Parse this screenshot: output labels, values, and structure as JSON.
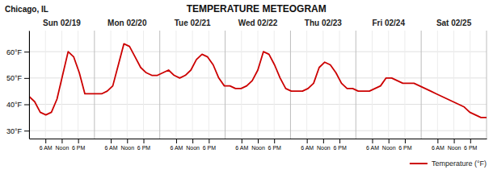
{
  "chart_data": {
    "type": "line",
    "title": "TEMPERATURE METEOGRAM",
    "subtitle": "Chicago, IL",
    "annotations": [
      "Sun 02/19",
      "Mon 02/20",
      "Tue 02/21",
      "Wed 02/22",
      "Thu 02/23",
      "Fri 02/24",
      "Sat 02/25"
    ],
    "series": [
      {
        "name": "Temperature (°F)",
        "color": "#cc0000",
        "values": [
          43,
          41,
          37,
          36,
          37,
          42,
          51,
          60,
          58,
          52,
          44,
          44,
          44,
          44,
          45,
          47,
          55,
          63,
          62,
          58,
          54,
          52,
          51,
          51,
          52,
          53,
          51,
          50,
          51,
          53,
          57,
          59,
          58,
          55,
          50,
          47,
          47,
          46,
          46,
          47,
          49,
          53,
          60,
          59,
          55,
          50,
          46,
          45,
          45,
          45,
          46,
          48,
          54,
          56,
          55,
          52,
          48,
          46,
          46,
          45,
          45,
          45,
          46,
          47,
          50,
          50,
          49,
          48,
          48,
          48,
          47,
          46,
          45,
          44,
          43,
          42,
          41,
          40,
          39,
          37,
          36,
          35,
          35
        ]
      }
    ],
    "xlim": [
      0,
      168
    ],
    "xticks": [
      {
        "value": 6,
        "label": "6 AM"
      },
      {
        "value": 12,
        "label": "Noon"
      },
      {
        "value": 18,
        "label": "6 PM"
      },
      {
        "value": 30,
        "label": "6 AM"
      },
      {
        "value": 36,
        "label": "Noon"
      },
      {
        "value": 42,
        "label": "6 PM"
      },
      {
        "value": 54,
        "label": "6 AM"
      },
      {
        "value": 60,
        "label": "Noon"
      },
      {
        "value": 66,
        "label": "6 PM"
      },
      {
        "value": 78,
        "label": "6 AM"
      },
      {
        "value": 84,
        "label": "Noon"
      },
      {
        "value": 90,
        "label": "6 PM"
      },
      {
        "value": 102,
        "label": "6 AM"
      },
      {
        "value": 108,
        "label": "Noon"
      },
      {
        "value": 114,
        "label": "6 PM"
      },
      {
        "value": 126,
        "label": "6 AM"
      },
      {
        "value": 132,
        "label": "Noon"
      },
      {
        "value": 138,
        "label": "6 PM"
      },
      {
        "value": 150,
        "label": "6 AM"
      },
      {
        "value": 156,
        "label": "Noon"
      },
      {
        "value": 162,
        "label": "6 PM"
      }
    ],
    "ylim": [
      27,
      68
    ],
    "yticks": [
      {
        "value": 30,
        "label": "30°F"
      },
      {
        "value": 40,
        "label": "40°F"
      },
      {
        "value": 50,
        "label": "50°F"
      },
      {
        "value": 60,
        "label": "60°F"
      }
    ],
    "grid": true,
    "legend": "lower right"
  }
}
